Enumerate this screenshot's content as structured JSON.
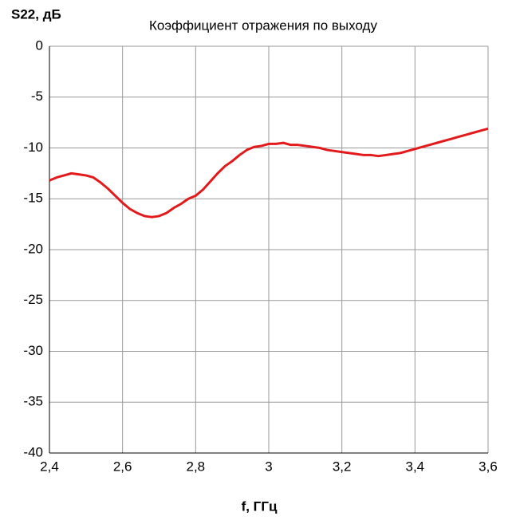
{
  "chart_data": {
    "type": "line",
    "title": "Коэффициент отражения по выходу",
    "y_label": "S22, дБ",
    "x_label": "f, ГГц",
    "xlim": [
      2.4,
      3.6
    ],
    "ylim": [
      -40,
      0
    ],
    "xticks": [
      {
        "value": 2.4,
        "label": "2,4"
      },
      {
        "value": 2.6,
        "label": "2,6"
      },
      {
        "value": 2.8,
        "label": "2,8"
      },
      3,
      {
        "value": 3.2,
        "label": "3,2"
      },
      {
        "value": 3.4,
        "label": "3,4"
      },
      {
        "value": 3.6,
        "label": "3,6"
      }
    ],
    "yticks": [
      0,
      -5,
      -10,
      -15,
      -20,
      -25,
      -30,
      -35,
      -40
    ],
    "grid": true,
    "x": [
      2.4,
      2.42,
      2.44,
      2.46,
      2.48,
      2.5,
      2.52,
      2.54,
      2.56,
      2.58,
      2.6,
      2.62,
      2.64,
      2.66,
      2.68,
      2.7,
      2.72,
      2.74,
      2.76,
      2.78,
      2.8,
      2.82,
      2.84,
      2.86,
      2.88,
      2.9,
      2.92,
      2.94,
      2.96,
      2.98,
      3.0,
      3.02,
      3.04,
      3.06,
      3.08,
      3.1,
      3.12,
      3.14,
      3.16,
      3.18,
      3.2,
      3.22,
      3.24,
      3.26,
      3.28,
      3.3,
      3.32,
      3.34,
      3.36,
      3.38,
      3.4,
      3.42,
      3.44,
      3.46,
      3.48,
      3.5,
      3.52,
      3.54,
      3.56,
      3.58,
      3.6
    ],
    "series": [
      {
        "color": "#e31a1c",
        "values": [
          -13.2,
          -12.9,
          -12.7,
          -12.5,
          -12.6,
          -12.7,
          -12.9,
          -13.4,
          -14.0,
          -14.7,
          -15.4,
          -16.0,
          -16.4,
          -16.7,
          -16.8,
          -16.7,
          -16.4,
          -15.9,
          -15.5,
          -15.0,
          -14.7,
          -14.1,
          -13.3,
          -12.5,
          -11.8,
          -11.3,
          -10.7,
          -10.2,
          -9.9,
          -9.8,
          -9.6,
          -9.6,
          -9.5,
          -9.7,
          -9.7,
          -9.8,
          -9.9,
          -10.0,
          -10.2,
          -10.3,
          -10.4,
          -10.5,
          -10.6,
          -10.7,
          -10.7,
          -10.8,
          -10.7,
          -10.6,
          -10.5,
          -10.3,
          -10.1,
          -9.9,
          -9.7,
          -9.5,
          -9.3,
          -9.1,
          -8.9,
          -8.7,
          -8.5,
          -8.3,
          -8.1
        ]
      }
    ]
  }
}
